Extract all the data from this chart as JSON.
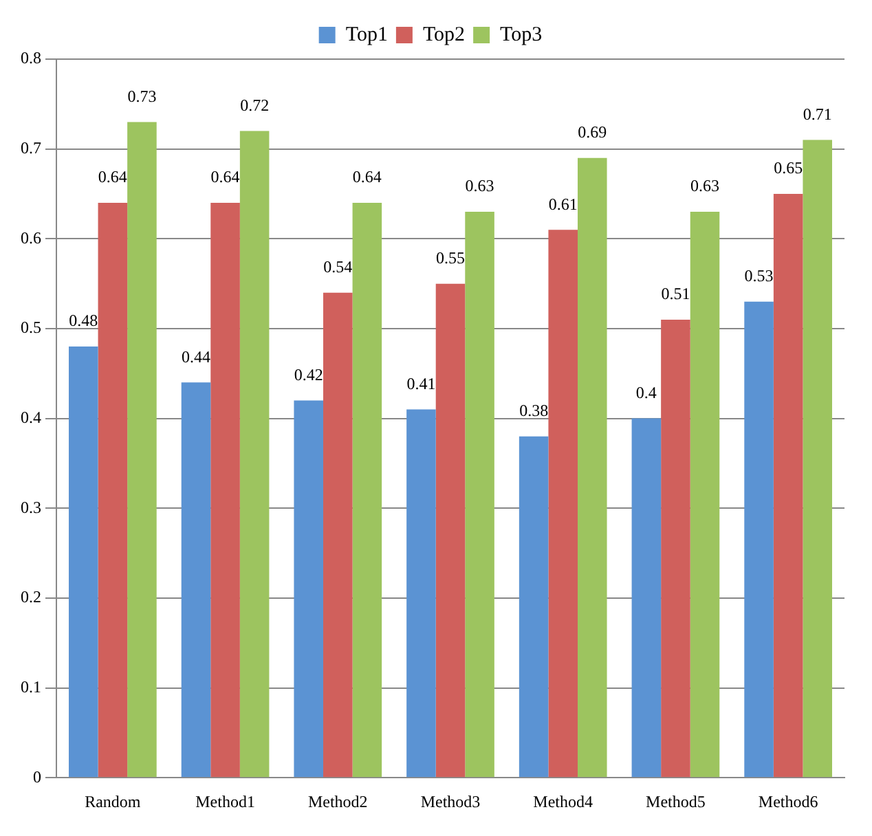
{
  "chart_data": {
    "type": "bar",
    "categories": [
      "Random",
      "Method1",
      "Method2",
      "Method3",
      "Method4",
      "Method5",
      "Method6"
    ],
    "series": [
      {
        "name": "Top1",
        "color": "#5b93d3",
        "values": [
          0.48,
          0.44,
          0.42,
          0.41,
          0.38,
          0.4,
          0.53
        ]
      },
      {
        "name": "Top2",
        "color": "#d0605c",
        "values": [
          0.64,
          0.64,
          0.54,
          0.55,
          0.61,
          0.51,
          0.65
        ]
      },
      {
        "name": "Top3",
        "color": "#9dc45f",
        "values": [
          0.73,
          0.72,
          0.64,
          0.63,
          0.69,
          0.63,
          0.71
        ]
      }
    ],
    "ylim": [
      0,
      0.8
    ],
    "yticks": [
      0,
      0.1,
      0.2,
      0.3,
      0.4,
      0.5,
      0.6,
      0.7,
      0.8
    ],
    "grid": "y",
    "legend": "top",
    "data_labels": true
  }
}
